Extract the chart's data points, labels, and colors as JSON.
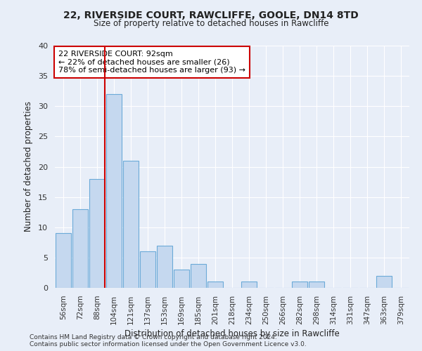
{
  "title1": "22, RIVERSIDE COURT, RAWCLIFFE, GOOLE, DN14 8TD",
  "title2": "Size of property relative to detached houses in Rawcliffe",
  "xlabel": "Distribution of detached houses by size in Rawcliffe",
  "ylabel": "Number of detached properties",
  "categories": [
    "56sqm",
    "72sqm",
    "88sqm",
    "104sqm",
    "121sqm",
    "137sqm",
    "153sqm",
    "169sqm",
    "185sqm",
    "201sqm",
    "218sqm",
    "234sqm",
    "250sqm",
    "266sqm",
    "282sqm",
    "298sqm",
    "314sqm",
    "331sqm",
    "347sqm",
    "363sqm",
    "379sqm"
  ],
  "values": [
    9,
    13,
    18,
    32,
    21,
    6,
    7,
    3,
    4,
    1,
    0,
    1,
    0,
    0,
    1,
    1,
    0,
    0,
    0,
    2,
    0
  ],
  "bar_color": "#c5d8ef",
  "bar_edge_color": "#6baad8",
  "vline_color": "#cc0000",
  "annotation_line1": "22 RIVERSIDE COURT: 92sqm",
  "annotation_line2": "← 22% of detached houses are smaller (26)",
  "annotation_line3": "78% of semi-detached houses are larger (93) →",
  "annotation_box_color": "#ffffff",
  "annotation_box_edge": "#cc0000",
  "footer1": "Contains HM Land Registry data © Crown copyright and database right 2024.",
  "footer2": "Contains public sector information licensed under the Open Government Licence v3.0.",
  "ylim": [
    0,
    40
  ],
  "yticks": [
    0,
    5,
    10,
    15,
    20,
    25,
    30,
    35,
    40
  ],
  "background_color": "#e8eef8",
  "grid_color": "#ffffff"
}
